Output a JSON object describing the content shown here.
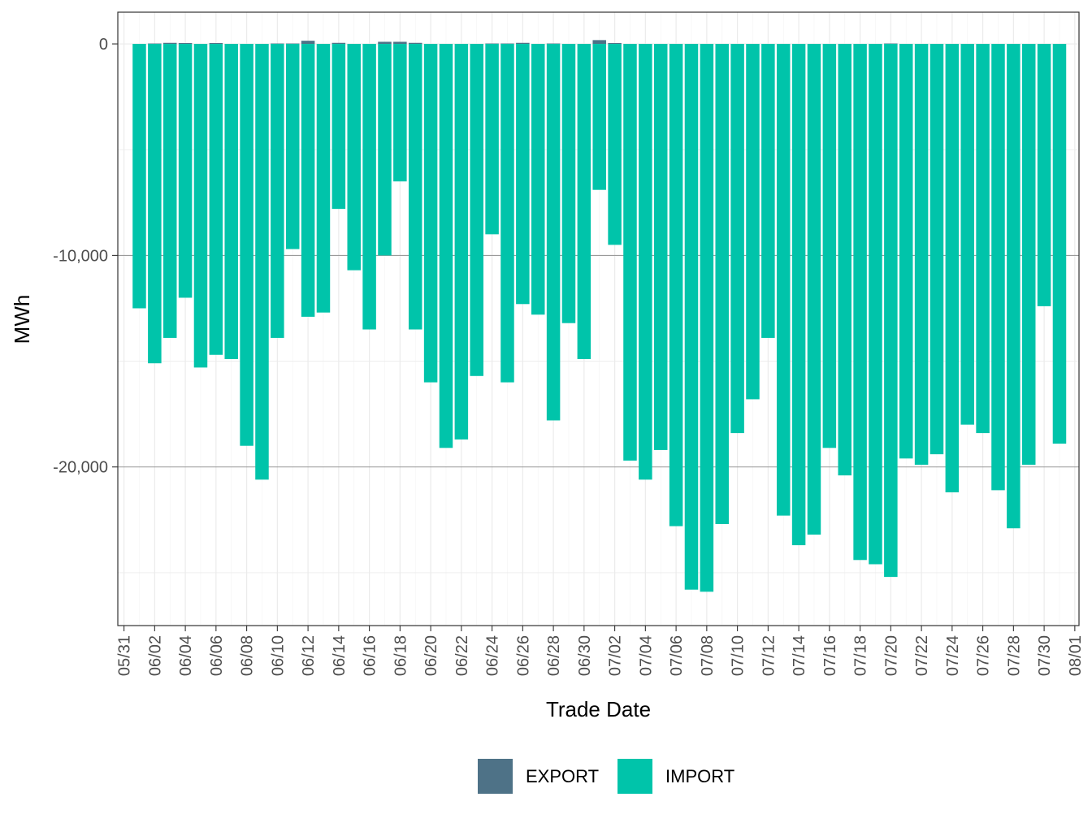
{
  "chart_data": {
    "type": "bar",
    "stacked": true,
    "xlabel": "Trade Date",
    "ylabel": "MWh",
    "ylim": [
      -27500,
      1500
    ],
    "y_ticks": [
      0,
      -10000,
      -20000
    ],
    "y_tick_labels": [
      "0",
      "-10,000",
      "-20,000"
    ],
    "x_tick_labels": [
      "05/31",
      "06/02",
      "06/04",
      "06/06",
      "06/08",
      "06/10",
      "06/12",
      "06/14",
      "06/16",
      "06/18",
      "06/20",
      "06/22",
      "06/24",
      "06/26",
      "06/28",
      "06/30",
      "07/02",
      "07/04",
      "07/06",
      "07/08",
      "07/10",
      "07/12",
      "07/14",
      "07/16",
      "07/18",
      "07/20",
      "07/22",
      "07/24",
      "07/26",
      "07/28",
      "07/30",
      "08/01"
    ],
    "grid": true,
    "legend_position": "bottom",
    "categories": [
      "06/01",
      "06/02",
      "06/03",
      "06/04",
      "06/05",
      "06/06",
      "06/07",
      "06/08",
      "06/09",
      "06/10",
      "06/11",
      "06/12",
      "06/13",
      "06/14",
      "06/15",
      "06/16",
      "06/17",
      "06/18",
      "06/19",
      "06/20",
      "06/21",
      "06/22",
      "06/23",
      "06/24",
      "06/25",
      "06/26",
      "06/27",
      "06/28",
      "06/29",
      "06/30",
      "07/01",
      "07/02",
      "07/03",
      "07/04",
      "07/05",
      "07/06",
      "07/07",
      "07/08",
      "07/09",
      "07/10",
      "07/11",
      "07/12",
      "07/13",
      "07/14",
      "07/15",
      "07/16",
      "07/17",
      "07/18",
      "07/19",
      "07/20",
      "07/21",
      "07/22",
      "07/23",
      "07/24",
      "07/25",
      "07/26",
      "07/27",
      "07/28",
      "07/29",
      "07/30",
      "07/31"
    ],
    "series": [
      {
        "name": "EXPORT",
        "color": "#4e7287",
        "values": [
          0,
          20,
          50,
          40,
          0,
          40,
          0,
          0,
          0,
          20,
          20,
          150,
          0,
          50,
          0,
          0,
          100,
          100,
          50,
          0,
          0,
          0,
          0,
          20,
          20,
          50,
          0,
          20,
          0,
          0,
          180,
          40,
          0,
          0,
          0,
          0,
          0,
          0,
          0,
          0,
          0,
          0,
          0,
          0,
          0,
          0,
          0,
          0,
          0,
          20,
          0,
          0,
          0,
          0,
          0,
          0,
          0,
          0,
          0,
          0,
          0
        ]
      },
      {
        "name": "IMPORT",
        "color": "#00c4aa",
        "values": [
          -12500,
          -15100,
          -13900,
          -12000,
          -15300,
          -14700,
          -14900,
          -19000,
          -20600,
          -13900,
          -9700,
          -12900,
          -12700,
          -7800,
          -10700,
          -13500,
          -10000,
          -6500,
          -13500,
          -16000,
          -19100,
          -18700,
          -15700,
          -9000,
          -16000,
          -12300,
          -12800,
          -17800,
          -13200,
          -14900,
          -6900,
          -9500,
          -19700,
          -20600,
          -19200,
          -22800,
          -25800,
          -25900,
          -22700,
          -18400,
          -16800,
          -13900,
          -22300,
          -23700,
          -23200,
          -19100,
          -20400,
          -24400,
          -24600,
          -25200,
          -19600,
          -19900,
          -19400,
          -21200,
          -18000,
          -18400,
          -21100,
          -22900,
          -19900,
          -12400,
          -18900
        ]
      }
    ]
  }
}
